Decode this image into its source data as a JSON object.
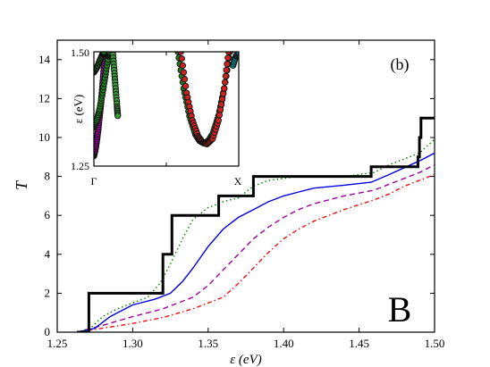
{
  "chart_data": [
    {
      "type": "line",
      "xlabel": "ε (eV)",
      "ylabel": "T",
      "xlim": [
        1.25,
        1.5
      ],
      "ylim": [
        0,
        15
      ],
      "x_ticks": [
        1.25,
        1.3,
        1.35,
        1.4,
        1.45,
        1.5
      ],
      "x_tick_labels": [
        "1.25",
        "1.30",
        "1.35",
        "1.40",
        "1.45",
        "1.50"
      ],
      "y_ticks": [
        0,
        2,
        4,
        6,
        8,
        10,
        12,
        14
      ],
      "y_tick_labels": [
        "0",
        "2",
        "4",
        "6",
        "8",
        "10",
        "12",
        "14"
      ],
      "annotations": [
        "(b)",
        "B"
      ],
      "series": [
        {
          "style": "solid-thick",
          "color": "#000000",
          "step": true,
          "x": [
            1.263,
            1.271,
            1.271,
            1.32,
            1.32,
            1.326,
            1.326,
            1.357,
            1.357,
            1.38,
            1.38,
            1.458,
            1.458,
            1.489,
            1.489,
            1.49,
            1.49,
            1.491,
            1.491,
            1.5
          ],
          "y": [
            0,
            0,
            2,
            2,
            4,
            4,
            6,
            6,
            7,
            7,
            8,
            8,
            8.5,
            8.5,
            9,
            9,
            10,
            10,
            11,
            11
          ]
        },
        {
          "style": "dotted",
          "color": "#008000",
          "x": [
            1.263,
            1.272,
            1.28,
            1.29,
            1.3,
            1.31,
            1.318,
            1.325,
            1.333,
            1.34,
            1.35,
            1.36,
            1.37,
            1.38,
            1.39,
            1.4,
            1.41,
            1.42,
            1.44,
            1.46,
            1.47,
            1.48,
            1.49,
            1.5
          ],
          "y": [
            0,
            0.2,
            0.8,
            1.2,
            1.5,
            1.8,
            2.5,
            3.5,
            4.8,
            5.8,
            6.4,
            6.7,
            6.9,
            7.5,
            7.8,
            7.9,
            8.0,
            8.0,
            8.0,
            8.2,
            8.6,
            8.9,
            9.2,
            9.9
          ]
        },
        {
          "style": "solid",
          "color": "#0000dd",
          "x": [
            1.263,
            1.275,
            1.285,
            1.3,
            1.315,
            1.325,
            1.333,
            1.34,
            1.35,
            1.36,
            1.37,
            1.38,
            1.39,
            1.4,
            1.41,
            1.42,
            1.44,
            1.458,
            1.47,
            1.48,
            1.49,
            1.5
          ],
          "y": [
            0,
            0.2,
            0.8,
            1.4,
            1.7,
            2.0,
            2.6,
            3.3,
            4.4,
            5.3,
            5.9,
            6.3,
            6.7,
            7.0,
            7.2,
            7.4,
            7.55,
            7.7,
            8.1,
            8.45,
            8.8,
            9.2
          ]
        },
        {
          "style": "dashed",
          "color": "#a000a0",
          "x": [
            1.263,
            1.28,
            1.3,
            1.32,
            1.34,
            1.35,
            1.36,
            1.37,
            1.38,
            1.39,
            1.4,
            1.41,
            1.42,
            1.44,
            1.46,
            1.47,
            1.48,
            1.49,
            1.5
          ],
          "y": [
            0,
            0.35,
            0.8,
            1.2,
            1.8,
            2.4,
            3.2,
            4.0,
            4.8,
            5.4,
            5.9,
            6.3,
            6.6,
            7.0,
            7.3,
            7.6,
            7.9,
            8.2,
            8.6
          ]
        },
        {
          "style": "dash-dot",
          "color": "#ee1111",
          "x": [
            1.263,
            1.28,
            1.3,
            1.32,
            1.34,
            1.36,
            1.37,
            1.38,
            1.39,
            1.4,
            1.41,
            1.42,
            1.44,
            1.46,
            1.47,
            1.48,
            1.49,
            1.5
          ],
          "y": [
            0,
            0.2,
            0.45,
            0.75,
            1.2,
            1.8,
            2.5,
            3.3,
            4.1,
            4.8,
            5.3,
            5.7,
            6.3,
            6.8,
            7.1,
            7.5,
            7.8,
            8.1
          ]
        }
      ]
    },
    {
      "type": "scatter",
      "ylabel": "ε (eV)",
      "ylim": [
        1.25,
        1.5
      ],
      "y_tick_labels": [
        "1.50",
        "1.25"
      ],
      "x_tick_labels": [
        "Γ",
        "X"
      ],
      "series": [
        {
          "color": "#a000a0",
          "x": [
            0.0,
            0.01,
            0.02,
            0.03,
            0.04,
            0.05,
            0.06,
            0.07,
            0.075
          ],
          "y": [
            1.272,
            1.285,
            1.305,
            1.33,
            1.36,
            1.39,
            1.43,
            1.47,
            1.5
          ]
        },
        {
          "color": "#1e7a1e",
          "x": [
            0.0,
            0.02,
            0.04,
            0.06,
            0.08,
            0.1,
            0.11
          ],
          "y": [
            1.335,
            1.35,
            1.375,
            1.41,
            1.45,
            1.49,
            1.5
          ]
        },
        {
          "color": "#1e7a1e",
          "x": [
            0.0,
            0.02,
            0.04,
            0.06,
            0.07
          ],
          "y": [
            1.455,
            1.465,
            1.48,
            1.495,
            1.5
          ]
        },
        {
          "color": "#3a9a3a",
          "x": [
            0.13,
            0.14,
            0.15,
            0.16,
            0.165
          ],
          "y": [
            1.5,
            1.46,
            1.42,
            1.38,
            1.36
          ]
        },
        {
          "color": "#1e7a1e",
          "x": [
            0.58,
            0.62,
            0.66,
            0.7,
            0.73,
            0.76,
            0.79,
            0.82,
            0.86,
            0.9,
            0.94
          ],
          "y": [
            1.5,
            1.42,
            1.36,
            1.32,
            1.305,
            1.3,
            1.305,
            1.32,
            1.36,
            1.42,
            1.5
          ]
        },
        {
          "color": "#cc2222",
          "x": [
            0.6,
            0.64,
            0.68,
            0.72,
            0.75,
            0.78,
            0.82,
            0.86,
            0.9,
            0.93
          ],
          "y": [
            1.5,
            1.41,
            1.35,
            1.315,
            1.302,
            1.298,
            1.31,
            1.35,
            1.42,
            1.5
          ]
        },
        {
          "color": "#00aaaa",
          "x": [
            0.96,
            0.98,
            1.0
          ],
          "y": [
            1.47,
            1.49,
            1.5
          ]
        }
      ]
    }
  ]
}
